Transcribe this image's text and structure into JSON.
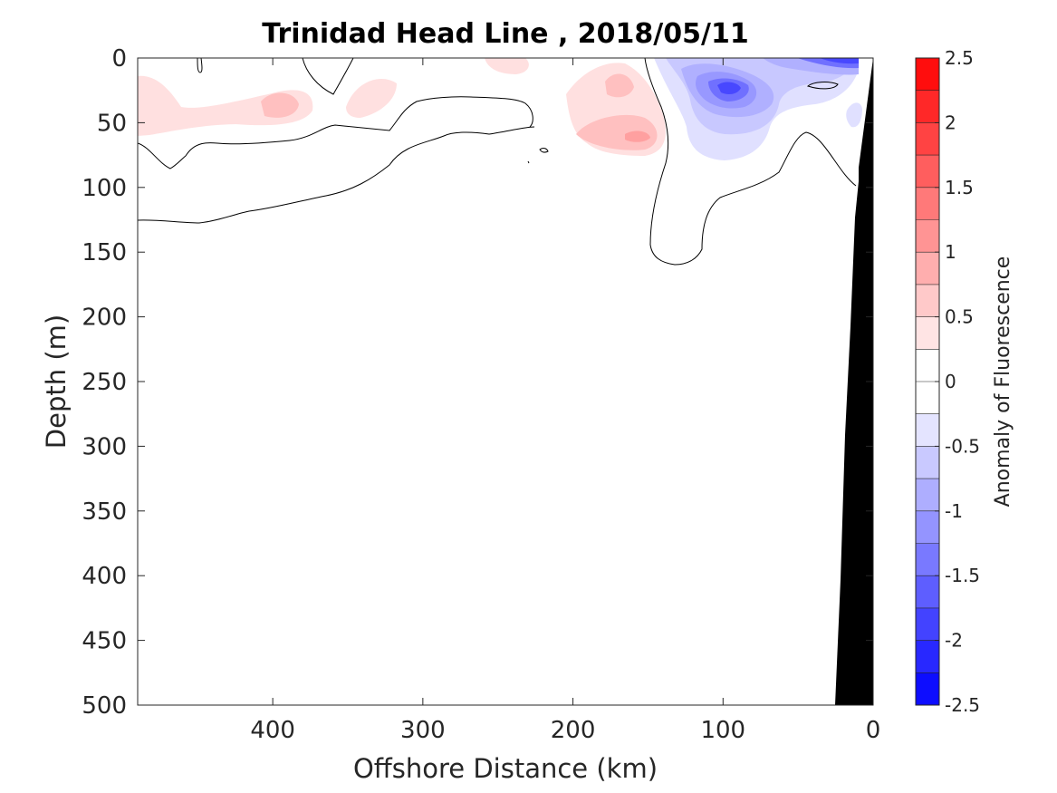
{
  "chart_data": {
    "type": "heatmap",
    "title": "Trinidad Head Line , 2018/05/11",
    "xlabel": "Offshore Distance (km)",
    "ylabel": "Depth (m)",
    "xlim": [
      490,
      0
    ],
    "ylim": [
      0,
      500
    ],
    "x_reversed": true,
    "y_reversed": true,
    "xticks": [
      400,
      300,
      200,
      100,
      0
    ],
    "yticks": [
      0,
      50,
      100,
      150,
      200,
      250,
      300,
      350,
      400,
      450,
      500
    ],
    "colorbar": {
      "label": "Anomaly of Fluorescence",
      "limits": [
        -2.5,
        2.5
      ],
      "step": 0.25,
      "ticks": [
        2.5,
        2,
        1.5,
        1,
        0.5,
        0,
        -0.5,
        -1,
        -1.5,
        -2,
        -2.5
      ],
      "colormap": "blue-white-red",
      "color_negative_end": "#0000ff",
      "color_zero": "#ffffff",
      "color_positive_end": "#ff0000"
    },
    "anomaly_cores": [
      {
        "x_km": 395,
        "depth_m": 35,
        "value": 0.5
      },
      {
        "x_km": 465,
        "depth_m": 45,
        "value": 0.25
      },
      {
        "x_km": 330,
        "depth_m": 25,
        "value": 0.25
      },
      {
        "x_km": 245,
        "depth_m": 5,
        "value": 0.25
      },
      {
        "x_km": 170,
        "depth_m": 20,
        "value": 0.5
      },
      {
        "x_km": 155,
        "depth_m": 60,
        "value": 0.75
      },
      {
        "x_km": 100,
        "depth_m": 22,
        "value": -1.5
      },
      {
        "x_km": 40,
        "depth_m": 3,
        "value": -1.25
      }
    ],
    "zero_contour_lines": [
      [
        [
          490,
          127
        ],
        [
          460,
          128
        ],
        [
          420,
          122
        ],
        [
          380,
          113
        ],
        [
          330,
          100
        ],
        [
          290,
          86
        ],
        [
          250,
          76
        ],
        [
          215,
          70
        ],
        [
          200,
          63
        ],
        [
          180,
          60
        ],
        [
          160,
          55
        ]
      ],
      [
        [
          490,
          66
        ],
        [
          470,
          85
        ],
        [
          450,
          82
        ],
        [
          420,
          65
        ],
        [
          370,
          65
        ],
        [
          340,
          60
        ],
        [
          300,
          56
        ],
        [
          270,
          52
        ],
        [
          240,
          47
        ],
        [
          225,
          50
        ],
        [
          215,
          38
        ],
        [
          200,
          30
        ],
        [
          180,
          28
        ]
      ],
      [
        [
          345,
          0
        ],
        [
          345,
          20
        ],
        [
          335,
          28
        ],
        [
          330,
          12
        ],
        [
          330,
          0
        ]
      ],
      [
        [
          160,
          0
        ],
        [
          150,
          30
        ],
        [
          140,
          50
        ],
        [
          135,
          75
        ],
        [
          140,
          100
        ],
        [
          145,
          115
        ],
        [
          150,
          130
        ],
        [
          148,
          150
        ],
        [
          140,
          158
        ],
        [
          120,
          160
        ],
        [
          110,
          150
        ],
        [
          110,
          130
        ],
        [
          120,
          112
        ],
        [
          140,
          100
        ]
      ],
      [
        [
          80,
          20
        ],
        [
          70,
          10
        ],
        [
          60,
          5
        ],
        [
          40,
          0
        ]
      ],
      [
        [
          490,
          112
        ],
        [
          440,
          104
        ],
        [
          380,
          92
        ],
        [
          330,
          75
        ],
        [
          270,
          70
        ],
        [
          250,
          60
        ],
        [
          230,
          56
        ],
        [
          220,
          50
        ],
        [
          210,
          48
        ]
      ]
    ],
    "bathymetry": {
      "color": "#000000",
      "profile": [
        [
          0,
          0
        ],
        [
          8,
          80
        ],
        [
          12,
          100
        ],
        [
          15,
          200
        ],
        [
          20,
          300
        ],
        [
          22,
          400
        ],
        [
          25,
          500
        ]
      ]
    }
  }
}
